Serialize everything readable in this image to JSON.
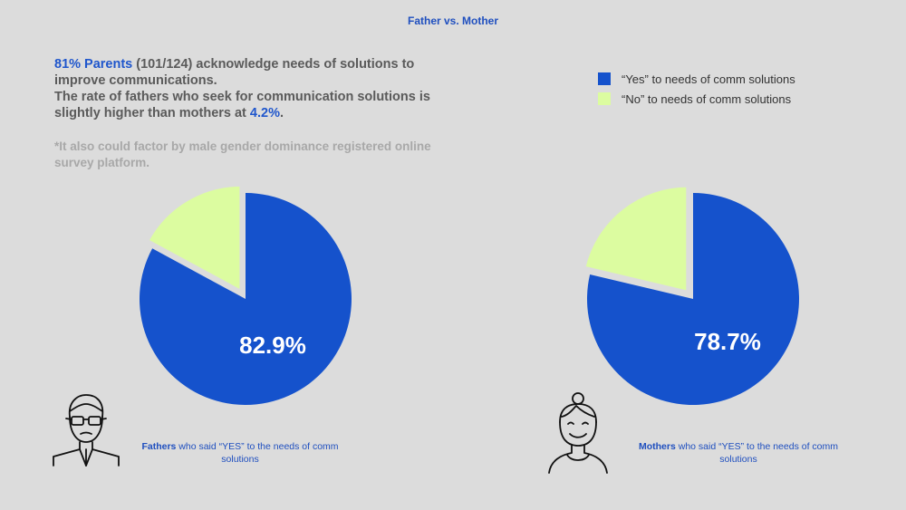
{
  "title": "Father vs. Mother",
  "intro": {
    "highlight": "81% Parents",
    "line1_rest": " (101/124) acknowledge needs of solutions to improve communications.",
    "line2": "The rate of fathers who seek for communication solutions is slightly higher than mothers at ",
    "line2_highlight": "4.2%",
    "line2_end": "."
  },
  "note": "*It also could factor by male gender dominance registered online survey platform.",
  "legend": {
    "yes": "“Yes” to needs of comm solutions",
    "no": "“No” to needs of comm solutions"
  },
  "colors": {
    "yes": "#1552cc",
    "no": "#dcfca0",
    "background": "#dcdcdc"
  },
  "captions": {
    "fathers_bold": "Fathers",
    "fathers_rest": " who said “YES” to the needs of comm solutions",
    "mothers_bold": "Mothers",
    "mothers_rest": " who said “YES” to the needs of comm solutions"
  },
  "icons": {
    "father": "man-with-glasses-icon",
    "mother": "woman-icon"
  },
  "chart_data": [
    {
      "type": "pie",
      "name": "Fathers",
      "labels": [
        "“Yes” to needs of comm solutions",
        "“No” to needs of comm solutions"
      ],
      "values": [
        82.9,
        17.1
      ],
      "label_text": "82.9%",
      "exploded": "No"
    },
    {
      "type": "pie",
      "name": "Mothers",
      "labels": [
        "“Yes” to needs of comm solutions",
        "“No” to needs of comm solutions"
      ],
      "values": [
        78.7,
        21.3
      ],
      "label_text": "78.7%",
      "exploded": "No"
    }
  ]
}
